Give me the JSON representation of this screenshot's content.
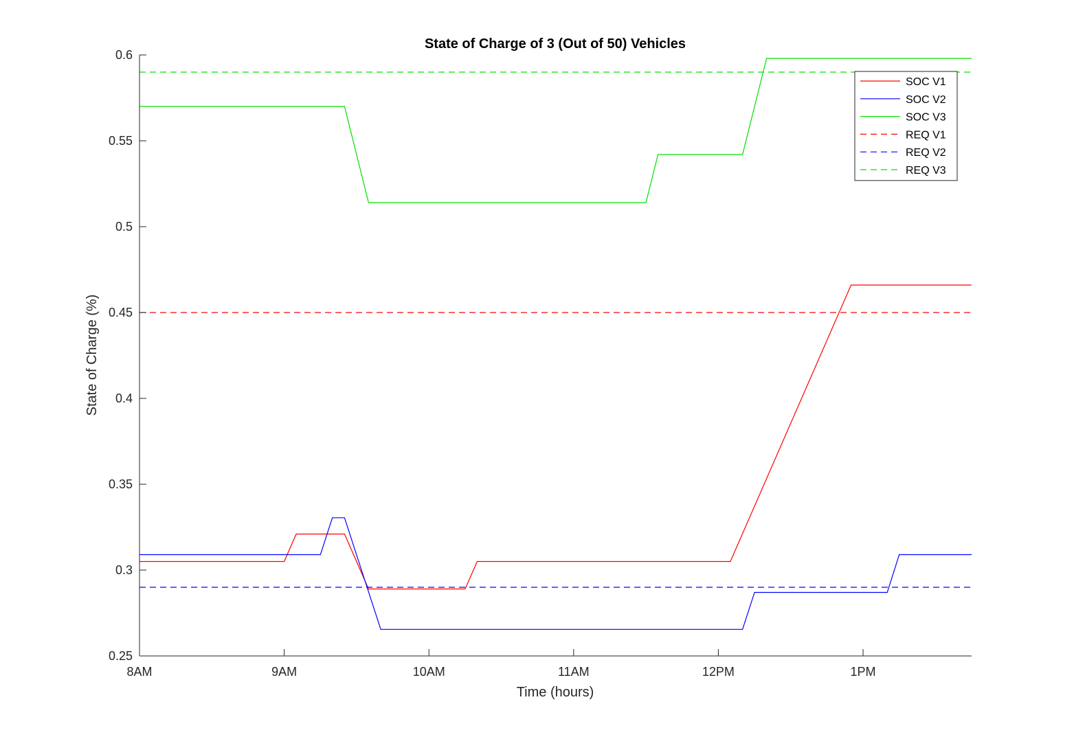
{
  "chart_data": {
    "type": "line",
    "title": "State of Charge of 3 (Out of 50) Vehicles",
    "xlabel": "Time (hours)",
    "ylabel": "State of Charge (%)",
    "xlim": [
      8,
      13.75
    ],
    "ylim": [
      0.25,
      0.6
    ],
    "xticks": [
      8,
      9,
      10,
      11,
      12,
      13
    ],
    "xtick_labels": [
      "8AM",
      "9AM",
      "10AM",
      "11AM",
      "12PM",
      "1PM"
    ],
    "yticks": [
      0.25,
      0.3,
      0.35,
      0.4,
      0.45,
      0.5,
      0.55,
      0.6
    ],
    "ytick_labels": [
      "0.25",
      "0.3",
      "0.35",
      "0.4",
      "0.45",
      "0.5",
      "0.55",
      "0.6"
    ],
    "grid": false,
    "legend_position": "top-right",
    "series": [
      {
        "name": "SOC V1",
        "color": "#ff0000",
        "style": "solid",
        "x": [
          8.0,
          9.0,
          9.083,
          9.417,
          9.583,
          10.25,
          10.333,
          12.083,
          12.917,
          13.75
        ],
        "y": [
          0.305,
          0.305,
          0.321,
          0.321,
          0.289,
          0.289,
          0.305,
          0.305,
          0.466,
          0.466
        ]
      },
      {
        "name": "SOC V2",
        "color": "#0000ff",
        "style": "solid",
        "x": [
          8.0,
          9.25,
          9.333,
          9.417,
          9.667,
          12.167,
          12.25,
          13.167,
          13.25,
          13.75
        ],
        "y": [
          0.309,
          0.309,
          0.3305,
          0.3305,
          0.2655,
          0.2655,
          0.287,
          0.287,
          0.309,
          0.309
        ]
      },
      {
        "name": "SOC V3",
        "color": "#00e000",
        "style": "solid",
        "x": [
          8.0,
          9.417,
          9.583,
          11.5,
          11.583,
          12.167,
          12.333,
          13.75
        ],
        "y": [
          0.57,
          0.57,
          0.514,
          0.514,
          0.542,
          0.542,
          0.598,
          0.598
        ]
      },
      {
        "name": "REQ V1",
        "color": "#ff0000",
        "style": "dashed",
        "x": [
          8.0,
          13.75
        ],
        "y": [
          0.45,
          0.45
        ]
      },
      {
        "name": "REQ V2",
        "color": "#0000ff",
        "style": "dashed",
        "x": [
          8.0,
          13.75
        ],
        "y": [
          0.29,
          0.29
        ]
      },
      {
        "name": "REQ V3",
        "color": "#00e000",
        "style": "dashed",
        "x": [
          8.0,
          13.75
        ],
        "y": [
          0.59,
          0.59
        ]
      }
    ]
  }
}
